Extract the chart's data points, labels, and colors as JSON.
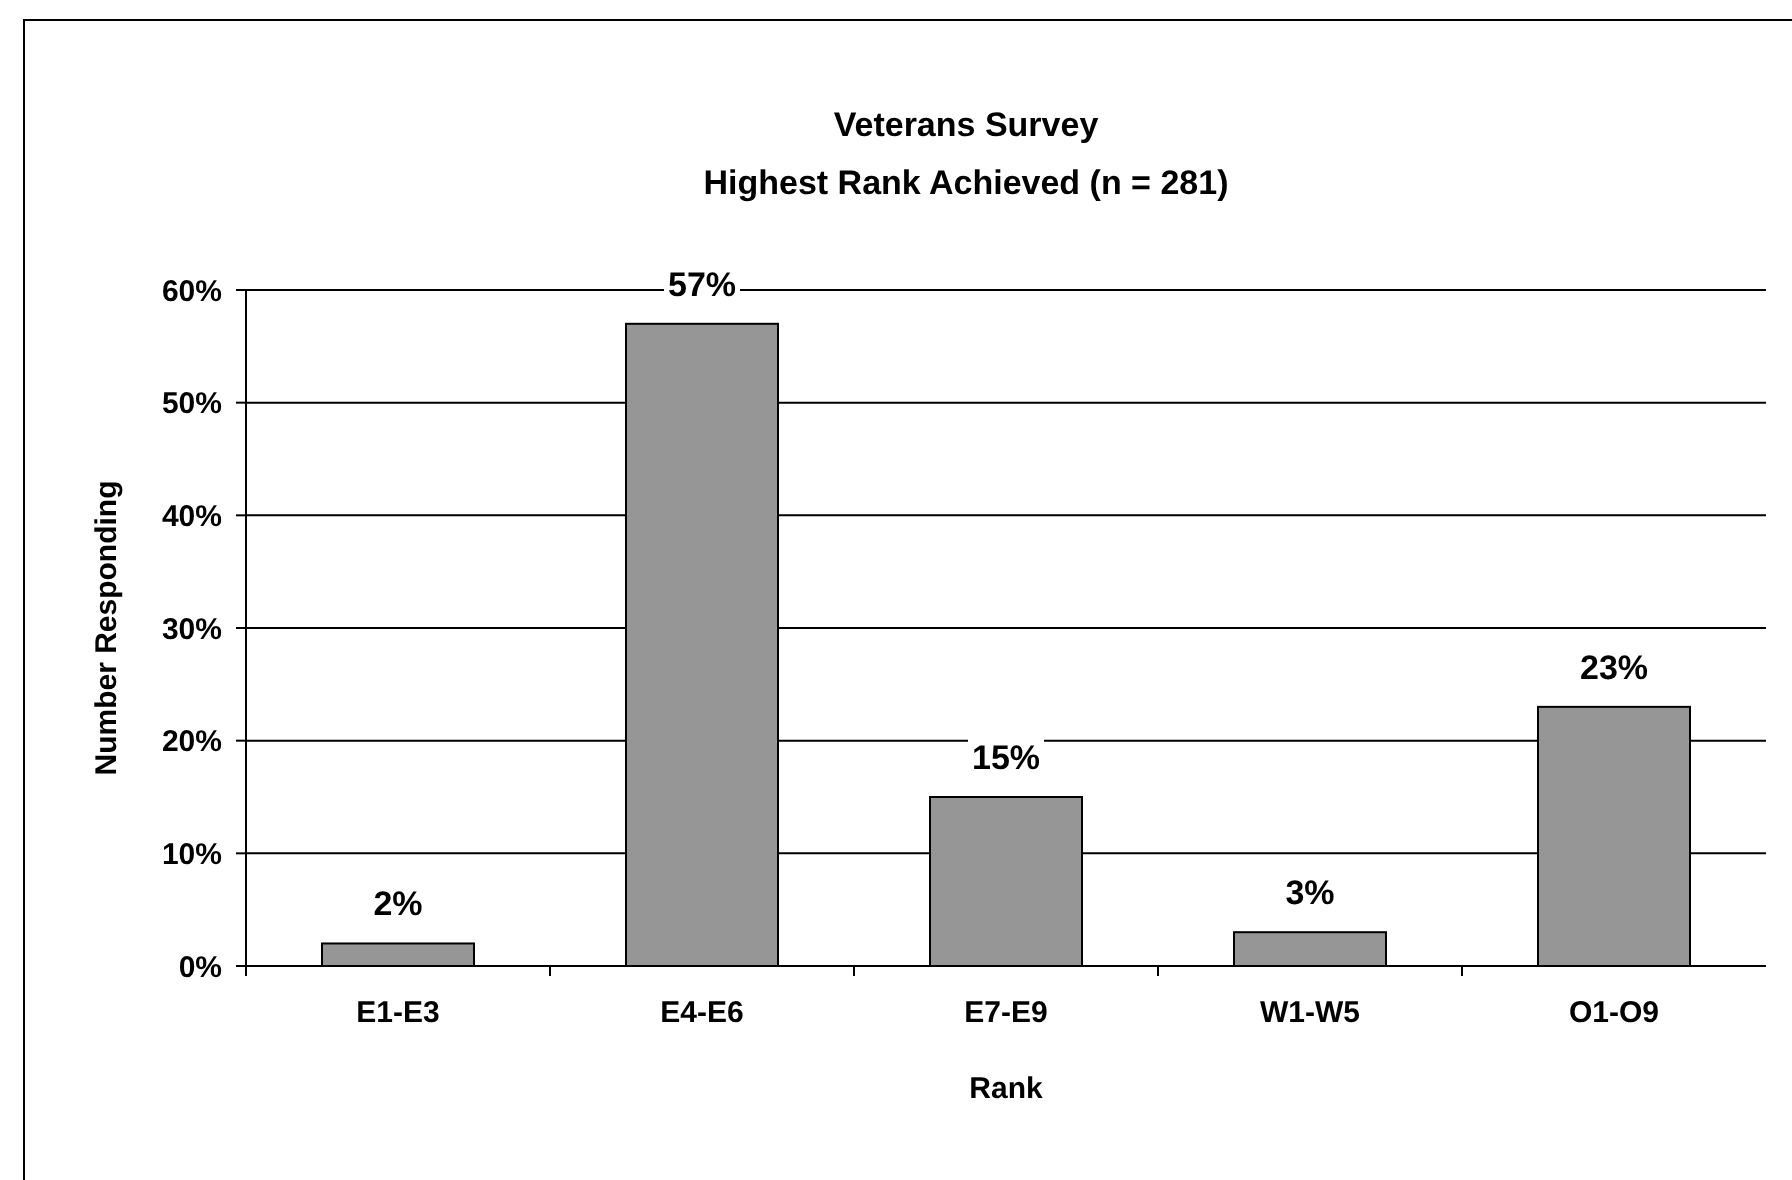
{
  "chart_data": {
    "type": "bar",
    "title": "Veterans Survey",
    "subtitle": "Highest Rank Achieved (n = 281)",
    "xlabel": "Rank",
    "ylabel": "Number Responding",
    "categories": [
      "E1-E3",
      "E4-E6",
      "E7-E9",
      "W1-W5",
      "O1-O9"
    ],
    "values": [
      2,
      57,
      15,
      3,
      23
    ],
    "color": "#969696",
    "data_labels": true,
    "value_labels": [
      "2%",
      "57%",
      "15%",
      "3%",
      "23%"
    ],
    "ylim": [
      0,
      60
    ],
    "yticks": [
      {
        "value": 0,
        "label": "0%"
      },
      {
        "value": 10,
        "label": "10%"
      },
      {
        "value": 20,
        "label": "20%"
      },
      {
        "value": 30,
        "label": "30%"
      },
      {
        "value": 40,
        "label": "40%"
      },
      {
        "value": 50,
        "label": "50%"
      },
      {
        "value": 60,
        "label": "60%"
      }
    ],
    "grid": "y"
  }
}
